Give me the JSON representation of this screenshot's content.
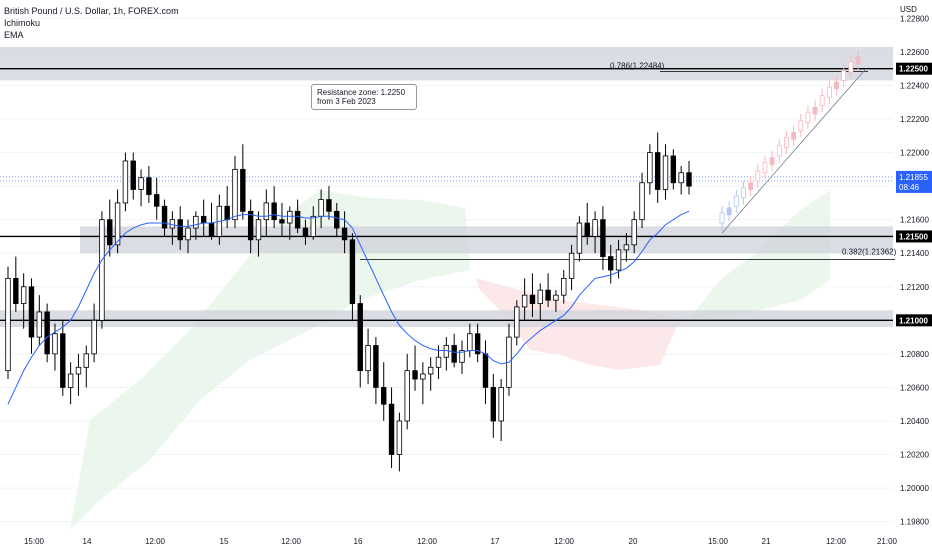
{
  "header": {
    "symbol": "British Pound / U.S. Dollar, 1h, FOREX.com",
    "indicator1": "Ichimoku",
    "indicator2": "EMA"
  },
  "price_axis": {
    "currency": "USD",
    "labels": [
      "1.22800",
      "1.22600",
      "1.22400",
      "1.22200",
      "1.22000",
      "1.21800",
      "1.21600",
      "1.21400",
      "1.21200",
      "1.21000",
      "1.20800",
      "1.20600",
      "1.20400",
      "1.20200",
      "1.20000",
      "1.19800"
    ],
    "last_price": "1.21855",
    "countdown": "08:46",
    "level_tags": [
      "1.22500",
      "1.21500",
      "1.21000"
    ]
  },
  "time_axis": {
    "labels": [
      "15:00",
      "14",
      "12:00",
      "15",
      "12:00",
      "16",
      "12:00",
      "17",
      "12:00",
      "20",
      "15:00",
      "21",
      "12:00",
      "21:00"
    ]
  },
  "annotations": {
    "resistance_note": "Resistance zone: 1.2250 from 3 Feb 2023",
    "fib_upper": "0.786(1.22484)",
    "fib_lower": "0.382(1.21362)"
  },
  "colors": {
    "bull": "#ffffff",
    "bear": "#000000",
    "ema": "#2962ff",
    "cloud_bull": "#e8f5e9",
    "cloud_bear": "#fce4e4",
    "zone": "#d1d4dc",
    "projection_up": "#f5b8c0",
    "projection_down": "#b3c7ef"
  },
  "chart_data": {
    "type": "candlestick",
    "symbol": "British Pound / U.S. Dollar",
    "interval": "1h",
    "ylim": [
      1.1975,
      1.2285
    ],
    "levels": [
      1.225,
      1.215,
      1.21
    ],
    "zones": [
      [
        1.2243,
        1.2263
      ],
      [
        1.214,
        1.2156
      ],
      [
        1.2096,
        1.2106
      ]
    ],
    "fib": [
      {
        "label": "0.786(1.22484)",
        "value": 1.22484
      },
      {
        "label": "0.382(1.21362)",
        "value": 1.21362
      }
    ],
    "last_price": 1.21855,
    "candles_ohlc": [
      [
        1.207,
        1.2132,
        1.2065,
        1.2125
      ],
      [
        1.2125,
        1.2138,
        1.2105,
        1.211
      ],
      [
        1.211,
        1.2128,
        1.2095,
        1.212
      ],
      [
        1.212,
        1.2125,
        1.208,
        1.209
      ],
      [
        1.209,
        1.2115,
        1.2085,
        1.2105
      ],
      [
        1.2105,
        1.211,
        1.2075,
        1.208
      ],
      [
        1.208,
        1.2098,
        1.207,
        1.2092
      ],
      [
        1.2092,
        1.21,
        1.2055,
        1.206
      ],
      [
        1.206,
        1.2075,
        1.205,
        1.2068
      ],
      [
        1.2068,
        1.208,
        1.2055,
        1.2072
      ],
      [
        1.2072,
        1.2085,
        1.206,
        1.208
      ],
      [
        1.208,
        1.211,
        1.2075,
        1.21
      ],
      [
        1.21,
        1.2165,
        1.2095,
        1.216
      ],
      [
        1.216,
        1.2172,
        1.2138,
        1.2145
      ],
      [
        1.2145,
        1.2178,
        1.214,
        1.217
      ],
      [
        1.217,
        1.22,
        1.2165,
        1.2195
      ],
      [
        1.2195,
        1.22,
        1.2172,
        1.2178
      ],
      [
        1.2178,
        1.219,
        1.2168,
        1.2185
      ],
      [
        1.2185,
        1.2192,
        1.217,
        1.2175
      ],
      [
        1.2175,
        1.2185,
        1.216,
        1.2168
      ],
      [
        1.2168,
        1.2172,
        1.215,
        1.2155
      ],
      [
        1.2155,
        1.2165,
        1.2145,
        1.216
      ],
      [
        1.216,
        1.2168,
        1.2142,
        1.2148
      ],
      [
        1.2148,
        1.216,
        1.214,
        1.2155
      ],
      [
        1.2155,
        1.2165,
        1.2148,
        1.2162
      ],
      [
        1.2162,
        1.2172,
        1.215,
        1.2158
      ],
      [
        1.2158,
        1.217,
        1.2148,
        1.215
      ],
      [
        1.215,
        1.2175,
        1.2145,
        1.2168
      ],
      [
        1.2168,
        1.218,
        1.2155,
        1.216
      ],
      [
        1.216,
        1.2198,
        1.2155,
        1.219
      ],
      [
        1.219,
        1.2205,
        1.216,
        1.2165
      ],
      [
        1.2165,
        1.2172,
        1.214,
        1.2148
      ],
      [
        1.2148,
        1.2165,
        1.2138,
        1.216
      ],
      [
        1.216,
        1.2178,
        1.215,
        1.217
      ],
      [
        1.217,
        1.218,
        1.2155,
        1.216
      ],
      [
        1.216,
        1.217,
        1.215,
        1.2158
      ],
      [
        1.2158,
        1.2168,
        1.2148,
        1.2165
      ],
      [
        1.2165,
        1.2172,
        1.2152,
        1.2155
      ],
      [
        1.2155,
        1.216,
        1.2145,
        1.215
      ],
      [
        1.215,
        1.2168,
        1.2148,
        1.2162
      ],
      [
        1.2162,
        1.2178,
        1.2155,
        1.2172
      ],
      [
        1.2172,
        1.218,
        1.216,
        1.2165
      ],
      [
        1.2165,
        1.217,
        1.215,
        1.2155
      ],
      [
        1.2155,
        1.2165,
        1.214,
        1.2148
      ],
      [
        1.2148,
        1.2152,
        1.21,
        1.211
      ],
      [
        1.211,
        1.2115,
        1.206,
        1.207
      ],
      [
        1.207,
        1.2095,
        1.2062,
        1.2085
      ],
      [
        1.2085,
        1.209,
        1.205,
        1.206
      ],
      [
        1.206,
        1.2075,
        1.204,
        1.205
      ],
      [
        1.205,
        1.206,
        1.2012,
        1.202
      ],
      [
        1.202,
        1.2045,
        1.201,
        1.204
      ],
      [
        1.204,
        1.208,
        1.2035,
        1.207
      ],
      [
        1.207,
        1.2085,
        1.2058,
        1.2065
      ],
      [
        1.2065,
        1.2075,
        1.205,
        1.2068
      ],
      [
        1.2068,
        1.2078,
        1.2058,
        1.2072
      ],
      [
        1.2072,
        1.2085,
        1.2065,
        1.2078
      ],
      [
        1.2078,
        1.209,
        1.207,
        1.2085
      ],
      [
        1.2085,
        1.2092,
        1.2072,
        1.2075
      ],
      [
        1.2075,
        1.2088,
        1.2068,
        1.2082
      ],
      [
        1.2082,
        1.2098,
        1.2078,
        1.2092
      ],
      [
        1.2092,
        1.2098,
        1.2075,
        1.208
      ],
      [
        1.208,
        1.2088,
        1.205,
        1.206
      ],
      [
        1.206,
        1.2068,
        1.203,
        1.204
      ],
      [
        1.204,
        1.2065,
        1.2028,
        1.206
      ],
      [
        1.206,
        1.2098,
        1.2055,
        1.209
      ],
      [
        1.209,
        1.2112,
        1.2085,
        1.2108
      ],
      [
        1.2108,
        1.2125,
        1.21,
        1.2115
      ],
      [
        1.2115,
        1.2128,
        1.2102,
        1.211
      ],
      [
        1.211,
        1.2122,
        1.21,
        1.2118
      ],
      [
        1.2118,
        1.2128,
        1.2108,
        1.2112
      ],
      [
        1.2112,
        1.2118,
        1.2105,
        1.2115
      ],
      [
        1.2115,
        1.213,
        1.211,
        1.2125
      ],
      [
        1.2125,
        1.2145,
        1.2118,
        1.214
      ],
      [
        1.214,
        1.2162,
        1.2135,
        1.2158
      ],
      [
        1.2158,
        1.217,
        1.2145,
        1.215
      ],
      [
        1.215,
        1.2165,
        1.214,
        1.216
      ],
      [
        1.216,
        1.2168,
        1.213,
        1.2138
      ],
      [
        1.2138,
        1.2145,
        1.2122,
        1.213
      ],
      [
        1.213,
        1.2148,
        1.2125,
        1.2142
      ],
      [
        1.2142,
        1.2152,
        1.2135,
        1.2145
      ],
      [
        1.2145,
        1.2165,
        1.214,
        1.216
      ],
      [
        1.216,
        1.2188,
        1.2155,
        1.2182
      ],
      [
        1.2182,
        1.2205,
        1.2175,
        1.22
      ],
      [
        1.22,
        1.2212,
        1.217,
        1.2178
      ],
      [
        1.2178,
        1.2205,
        1.2172,
        1.2198
      ],
      [
        1.2198,
        1.2202,
        1.2178,
        1.2182
      ],
      [
        1.2182,
        1.2192,
        1.2175,
        1.2188
      ],
      [
        1.2188,
        1.2195,
        1.2175,
        1.218
      ]
    ],
    "ema_values": [
      1.205,
      1.206,
      1.207,
      1.2078,
      1.2085,
      1.209,
      1.2093,
      1.2096,
      1.21,
      1.2108,
      1.2118,
      1.2128,
      1.2136,
      1.2142,
      1.2147,
      1.2152,
      1.2155,
      1.2157,
      1.2158,
      1.2158,
      1.2158,
      1.2157,
      1.2156,
      1.2156,
      1.2157,
      1.2158,
      1.2158,
      1.2159,
      1.216,
      1.2162,
      1.2163,
      1.2163,
      1.2162,
      1.2162,
      1.2163,
      1.2162,
      1.2162,
      1.2162,
      1.2161,
      1.2161,
      1.2162,
      1.2162,
      1.2161,
      1.216,
      1.2155,
      1.2145,
      1.2135,
      1.2125,
      1.2115,
      1.2105,
      1.2097,
      1.2092,
      1.2088,
      1.2085,
      1.2083,
      1.2082,
      1.2082,
      1.2081,
      1.2081,
      1.2082,
      1.2082,
      1.208,
      1.2076,
      1.2074,
      1.2075,
      1.208,
      1.2086,
      1.209,
      1.2094,
      1.2097,
      1.21,
      1.2103,
      1.2108,
      1.2115,
      1.212,
      1.2125,
      1.2126,
      1.2127,
      1.2129,
      1.2131,
      1.2135,
      1.2141,
      1.2148,
      1.2152,
      1.2157,
      1.216,
      1.2163,
      1.2165
    ]
  }
}
